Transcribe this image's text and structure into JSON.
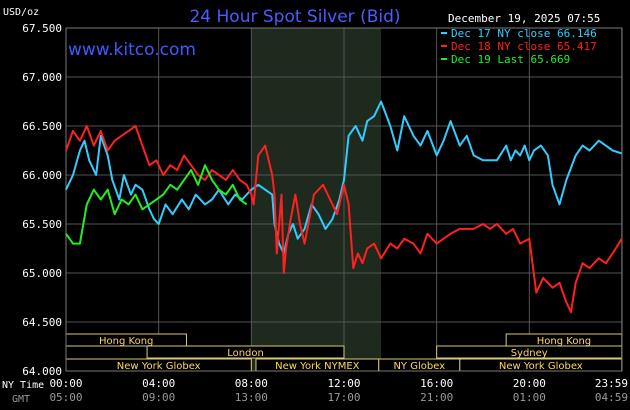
{
  "chart_data": {
    "type": "line",
    "title": "24 Hour Spot Silver (Bid)",
    "website": "www.kitco.com",
    "date_label": "December 19, 2025 07:55",
    "ylabel": "USD/oz",
    "ylim": [
      64.0,
      67.5
    ],
    "y_ticks": [
      "67.500",
      "67.000",
      "66.500",
      "66.000",
      "65.500",
      "65.000",
      "64.500",
      "64.000"
    ],
    "x_ticks": [
      "00:00",
      "04:00",
      "08:00",
      "12:00",
      "16:00",
      "20:00",
      "23:59"
    ],
    "gmt_ticks": [
      "05:00",
      "09:00",
      "13:00",
      "17:00",
      "21:00",
      "01:00",
      "04:59"
    ],
    "row_labels": {
      "ny": "NY Time",
      "gmt": "GMT"
    },
    "grid": true,
    "shaded_hours": [
      8.0,
      13.6
    ],
    "legend_placement": "top-right",
    "sessions": [
      {
        "name": "Hong Kong",
        "row": 0,
        "start": 0.0,
        "end": 5.2
      },
      {
        "name": "Hong Kong",
        "row": 0,
        "start": 19.0,
        "end": 23.99
      },
      {
        "name": "London",
        "row": 1,
        "start": 3.5,
        "end": 12.0
      },
      {
        "name": "Sydney",
        "row": 1,
        "start": 16.0,
        "end": 23.99
      },
      {
        "name": "New York Globex",
        "row": 2,
        "start": 0.0,
        "end": 8.0
      },
      {
        "name": "New York NYMEX",
        "row": 2,
        "start": 8.2,
        "end": 13.5
      },
      {
        "name": "NY Globex",
        "row": 2,
        "start": 13.5,
        "end": 17.0
      },
      {
        "name": "New York Globex",
        "row": 2,
        "start": 17.0,
        "end": 23.99
      }
    ],
    "series": [
      {
        "name": "Dec 17 NY close 66.146",
        "color": "#33ccff",
        "x": [
          0,
          0.3,
          0.6,
          0.8,
          1.0,
          1.3,
          1.5,
          1.8,
          2.0,
          2.3,
          2.5,
          2.8,
          3.0,
          3.3,
          3.6,
          3.8,
          4.0,
          4.3,
          4.6,
          5.0,
          5.3,
          5.6,
          6.0,
          6.3,
          6.6,
          7.0,
          7.3,
          7.6,
          8.0,
          8.3,
          8.6,
          8.9,
          9.0,
          9.2,
          9.4,
          9.6,
          9.8,
          10.0,
          10.3,
          10.6,
          10.9,
          11.2,
          11.5,
          11.8,
          12.0,
          12.2,
          12.5,
          12.8,
          13.0,
          13.3,
          13.6,
          14.0,
          14.3,
          14.6,
          15.0,
          15.3,
          15.6,
          16.0,
          16.3,
          16.6,
          17.0,
          17.3,
          17.6,
          18.0,
          18.3,
          18.6,
          19.0,
          19.2,
          19.4,
          19.6,
          19.8,
          20.0,
          20.2,
          20.5,
          20.8,
          21.0,
          21.3,
          21.6,
          22.0,
          22.3,
          22.6,
          23.0,
          23.3,
          23.6,
          23.99
        ],
        "y": [
          65.85,
          66.0,
          66.25,
          66.35,
          66.15,
          66.0,
          66.4,
          66.2,
          65.95,
          65.75,
          66.0,
          65.8,
          65.9,
          65.85,
          65.65,
          65.55,
          65.5,
          65.7,
          65.6,
          65.75,
          65.65,
          65.8,
          65.7,
          65.75,
          65.85,
          65.7,
          65.8,
          65.75,
          65.85,
          65.9,
          65.85,
          65.8,
          65.5,
          65.3,
          65.2,
          65.4,
          65.5,
          65.35,
          65.45,
          65.7,
          65.6,
          65.45,
          65.55,
          65.75,
          65.95,
          66.4,
          66.5,
          66.35,
          66.55,
          66.6,
          66.75,
          66.5,
          66.25,
          66.6,
          66.4,
          66.3,
          66.45,
          66.2,
          66.35,
          66.55,
          66.3,
          66.4,
          66.2,
          66.15,
          66.15,
          66.15,
          66.3,
          66.15,
          66.25,
          66.2,
          66.3,
          66.15,
          66.25,
          66.3,
          66.2,
          65.9,
          65.7,
          65.95,
          66.2,
          66.3,
          66.25,
          66.35,
          66.3,
          66.25,
          66.22
        ]
      },
      {
        "name": "Dec 18 NY close 65.417",
        "color": "#ff2020",
        "x": [
          0,
          0.3,
          0.6,
          0.9,
          1.2,
          1.5,
          1.8,
          2.1,
          2.4,
          2.7,
          3.0,
          3.3,
          3.6,
          3.9,
          4.2,
          4.5,
          4.8,
          5.1,
          5.4,
          5.7,
          6.0,
          6.3,
          6.6,
          6.9,
          7.2,
          7.5,
          7.8,
          8.0,
          8.1,
          8.3,
          8.6,
          8.9,
          9.0,
          9.1,
          9.2,
          9.3,
          9.4,
          9.5,
          9.7,
          9.9,
          10.1,
          10.3,
          10.5,
          10.7,
          10.9,
          11.1,
          11.4,
          11.7,
          12.0,
          12.2,
          12.4,
          12.6,
          12.8,
          13.0,
          13.3,
          13.6,
          14.0,
          14.3,
          14.6,
          15.0,
          15.3,
          15.6,
          16.0,
          16.3,
          16.6,
          17.0,
          17.3,
          17.6,
          18.0,
          18.3,
          18.6,
          19.0,
          19.3,
          19.6,
          20.0,
          20.3,
          20.6,
          21.0,
          21.3,
          21.6,
          21.8,
          22.0,
          22.3,
          22.6,
          23.0,
          23.3,
          23.6,
          23.99
        ],
        "y": [
          66.25,
          66.45,
          66.35,
          66.5,
          66.3,
          66.45,
          66.25,
          66.35,
          66.4,
          66.45,
          66.5,
          66.3,
          66.1,
          66.15,
          66.0,
          66.1,
          66.05,
          66.2,
          66.1,
          66.0,
          65.95,
          66.05,
          66.0,
          65.95,
          66.05,
          65.95,
          65.9,
          65.8,
          65.7,
          66.2,
          66.3,
          66.0,
          65.8,
          65.2,
          65.5,
          65.8,
          65.0,
          65.25,
          65.55,
          65.8,
          65.5,
          65.3,
          65.55,
          65.8,
          65.85,
          65.9,
          65.75,
          65.6,
          65.9,
          65.7,
          65.05,
          65.2,
          65.1,
          65.25,
          65.3,
          65.15,
          65.3,
          65.25,
          65.35,
          65.3,
          65.2,
          65.4,
          65.3,
          65.35,
          65.4,
          65.45,
          65.45,
          65.45,
          65.5,
          65.45,
          65.5,
          65.4,
          65.45,
          65.3,
          65.35,
          64.8,
          64.95,
          64.85,
          64.9,
          64.7,
          64.6,
          64.9,
          65.1,
          65.05,
          65.15,
          65.1,
          65.2,
          65.35
        ]
      },
      {
        "name": "Dec 19 Last 65.669",
        "color": "#22ee22",
        "x": [
          0,
          0.3,
          0.6,
          0.9,
          1.2,
          1.5,
          1.8,
          2.1,
          2.4,
          2.7,
          3.0,
          3.3,
          3.6,
          3.9,
          4.2,
          4.5,
          4.8,
          5.1,
          5.4,
          5.7,
          6.0,
          6.3,
          6.6,
          6.9,
          7.2,
          7.5,
          7.8
        ],
        "y": [
          65.4,
          65.3,
          65.3,
          65.7,
          65.85,
          65.75,
          65.85,
          65.6,
          65.75,
          65.7,
          65.8,
          65.65,
          65.7,
          65.75,
          65.8,
          65.9,
          65.85,
          65.95,
          66.05,
          65.9,
          66.1,
          65.95,
          65.85,
          65.8,
          65.9,
          65.75,
          65.7
        ]
      }
    ]
  }
}
